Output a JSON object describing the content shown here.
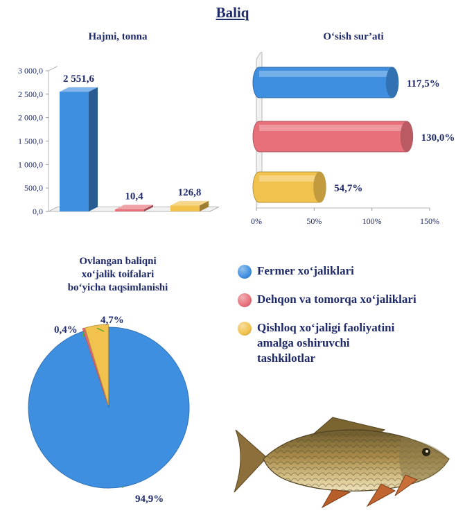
{
  "page": {
    "title": "Baliq"
  },
  "colors": {
    "farmer": "#3f8fe0",
    "dehqon": "#e8707a",
    "qishloq": "#f2c24e",
    "text": "#1f2a6b"
  },
  "chart_data": [
    {
      "type": "bar",
      "title": "Hajmi, tonna",
      "categories": [
        "Fermer xo‘jaliklari",
        "Dehqon va tomorqa xo‘jaliklari",
        "Qishloq xo‘jaligi faoliyatini amalga oshiruvchi tashkilotlar"
      ],
      "values": [
        2551.6,
        10.4,
        126.8
      ],
      "value_labels": [
        "2 551,6",
        "10,4",
        "126,8"
      ],
      "ylim": [
        0,
        3000
      ],
      "ytick_labels": [
        "0,0",
        "500,0",
        "1 000,0",
        "1 500,0",
        "2 000,0",
        "2 500,0",
        "3 000,0"
      ],
      "grid": false
    },
    {
      "type": "bar",
      "orientation": "horizontal",
      "title": "O‘sish sur’ati",
      "categories": [
        "Fermer xo‘jaliklari",
        "Dehqon va tomorqa xo‘jaliklari",
        "Qishloq xo‘jaligi faoliyatini amalga oshiruvchi tashkilotlar"
      ],
      "values": [
        117.5,
        130.0,
        54.7
      ],
      "value_labels": [
        "117,5%",
        "130,0%",
        "54,7%"
      ],
      "xlim": [
        0,
        150
      ],
      "xtick_labels": [
        "0%",
        "50%",
        "100%",
        "150%"
      ],
      "grid": false
    },
    {
      "type": "pie",
      "title": "Ovlangan baliqni xo‘jalik toifalari bo‘yicha taqsimlanishi",
      "title_lines": [
        "Ovlangan baliqni",
        "xo‘jalik toifalari",
        "bo‘yicha taqsimlanishi"
      ],
      "categories": [
        "Fermer xo‘jaliklari",
        "Dehqon va tomorqa xo‘jaliklari",
        "Qishloq xo‘jaligi faoliyatini amalga oshiruvchi tashkilotlar"
      ],
      "values": [
        94.9,
        0.4,
        4.7
      ],
      "value_labels": [
        "94,9%",
        "0,4%",
        "4,7%"
      ]
    }
  ],
  "legend": {
    "items": [
      {
        "label_lines": [
          "Fermer xo‘jaliklari"
        ],
        "color": "#3f8fe0"
      },
      {
        "label_lines": [
          "Dehqon va tomorqa xo‘jaliklari"
        ],
        "color": "#e8707a"
      },
      {
        "label_lines": [
          "Qishloq xo‘jaligi faoliyatini",
          "amalga oshiruvchi",
          "tashkilotlar"
        ],
        "color": "#f2c24e"
      }
    ]
  }
}
